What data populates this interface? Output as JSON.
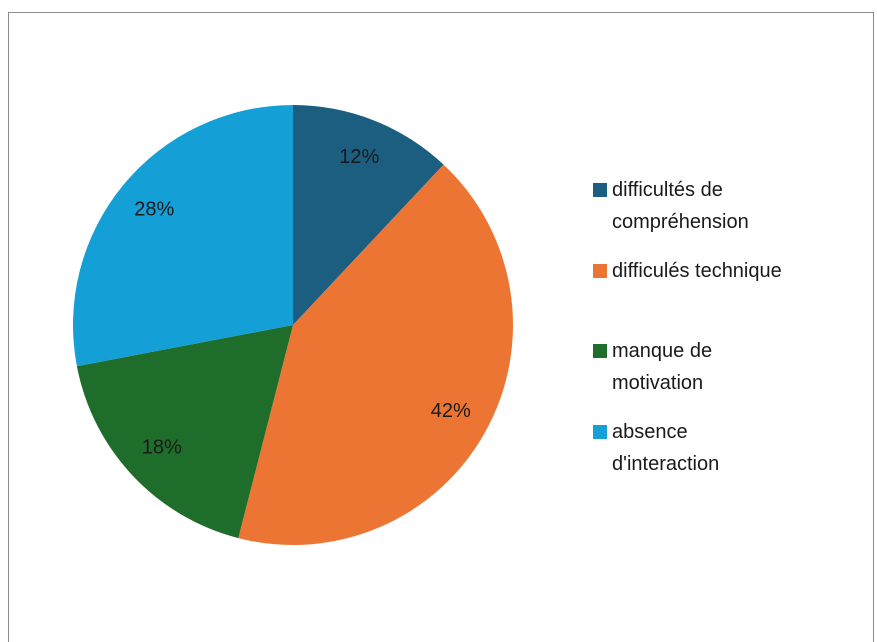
{
  "chart_data": {
    "type": "pie",
    "categories": [
      "difficultés de\ncompréhension",
      "difficulés technique",
      "manque de\nmotivation",
      "absence\nd'interaction"
    ],
    "values": [
      12,
      42,
      18,
      28
    ],
    "value_labels": [
      "12%",
      "42%",
      "18%",
      "28%"
    ],
    "colors": [
      "#1b5e80",
      "#ec7533",
      "#1e6d2b",
      "#159fd7"
    ],
    "legend": "right"
  }
}
